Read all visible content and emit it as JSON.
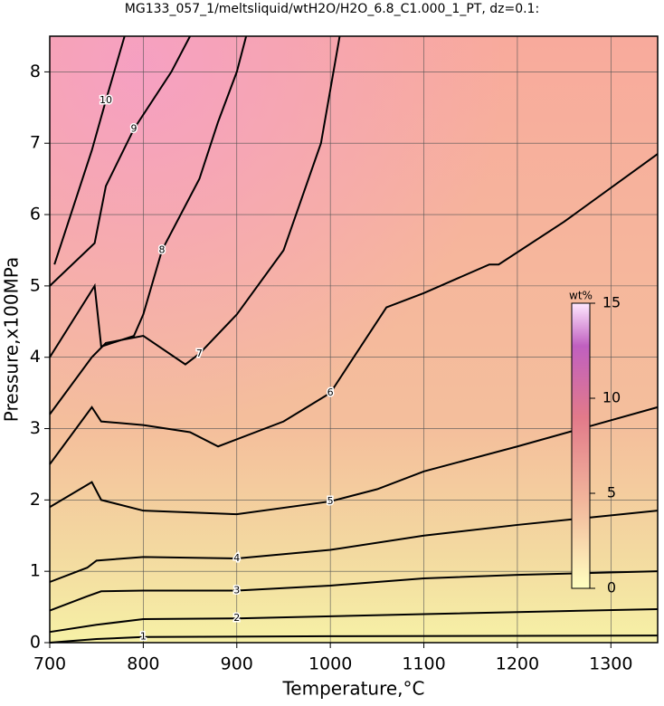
{
  "chart_data": {
    "type": "contour",
    "title": "MG133_057_1/meltsliquid/wtH2O/H2O_6.8_C1.000_1_PT, dz=0.1:",
    "x_label": "Temperature,°C",
    "y_label": "Pressure,x100MPa",
    "xlim": [
      700,
      1350
    ],
    "xticks": [
      700,
      800,
      900,
      1000,
      1100,
      1200,
      1300
    ],
    "ylim": [
      0,
      8.5
    ],
    "yticks": [
      0,
      1,
      2,
      3,
      4,
      5,
      6,
      7,
      8
    ],
    "grid": true,
    "contours": [
      {
        "level": 1,
        "x": [
          700,
          750,
          800,
          1000,
          1350
        ],
        "y": [
          0.0,
          0.05,
          0.08,
          0.09,
          0.1
        ]
      },
      {
        "level": 2,
        "x": [
          700,
          750,
          800,
          900,
          1100,
          1350
        ],
        "y": [
          0.15,
          0.25,
          0.33,
          0.34,
          0.4,
          0.47
        ]
      },
      {
        "level": 3,
        "x": [
          700,
          740,
          755,
          800,
          900,
          1000,
          1100,
          1200,
          1350
        ],
        "y": [
          0.45,
          0.65,
          0.72,
          0.73,
          0.73,
          0.8,
          0.9,
          0.95,
          1.0
        ]
      },
      {
        "level": 4,
        "x": [
          700,
          740,
          750,
          800,
          900,
          1000,
          1100,
          1200,
          1350
        ],
        "y": [
          0.85,
          1.05,
          1.15,
          1.2,
          1.18,
          1.3,
          1.5,
          1.65,
          1.85
        ]
      },
      {
        "level": 5,
        "x": [
          700,
          745,
          755,
          800,
          900,
          1000,
          1050,
          1100,
          1200,
          1350
        ],
        "y": [
          1.9,
          2.25,
          2.0,
          1.85,
          1.8,
          1.98,
          2.15,
          2.4,
          2.75,
          3.3
        ]
      },
      {
        "level": 6,
        "x": [
          700,
          745,
          755,
          800,
          850,
          880,
          950,
          1000,
          1060,
          1100,
          1170,
          1180,
          1250,
          1350
        ],
        "y": [
          2.5,
          3.3,
          3.1,
          3.05,
          2.95,
          2.75,
          3.1,
          3.5,
          4.7,
          4.9,
          5.3,
          5.3,
          5.9,
          6.85
        ]
      },
      {
        "level": 7,
        "x": [
          700,
          745,
          760,
          800,
          845,
          860,
          900,
          950,
          990,
          1010
        ],
        "y": [
          3.2,
          4.0,
          4.2,
          4.3,
          3.9,
          4.05,
          4.6,
          5.5,
          7.0,
          8.5
        ]
      },
      {
        "level": 8,
        "x": [
          700,
          748,
          755,
          790,
          800,
          820,
          860,
          880,
          900,
          910
        ],
        "y": [
          4.0,
          5.0,
          4.15,
          4.3,
          4.6,
          5.5,
          6.5,
          7.3,
          8.0,
          8.5
        ]
      },
      {
        "level": 9,
        "x": [
          700,
          748,
          760,
          790,
          830,
          850
        ],
        "y": [
          5.0,
          5.6,
          6.4,
          7.2,
          8.0,
          8.5
        ]
      },
      {
        "level": 10,
        "x": [
          705,
          745,
          760,
          780
        ],
        "y": [
          5.3,
          6.9,
          7.6,
          8.5
        ]
      }
    ],
    "colorbar": {
      "label": "wt%",
      "lim": [
        0,
        15
      ],
      "ticks": [
        0,
        5,
        10,
        15
      ]
    }
  }
}
